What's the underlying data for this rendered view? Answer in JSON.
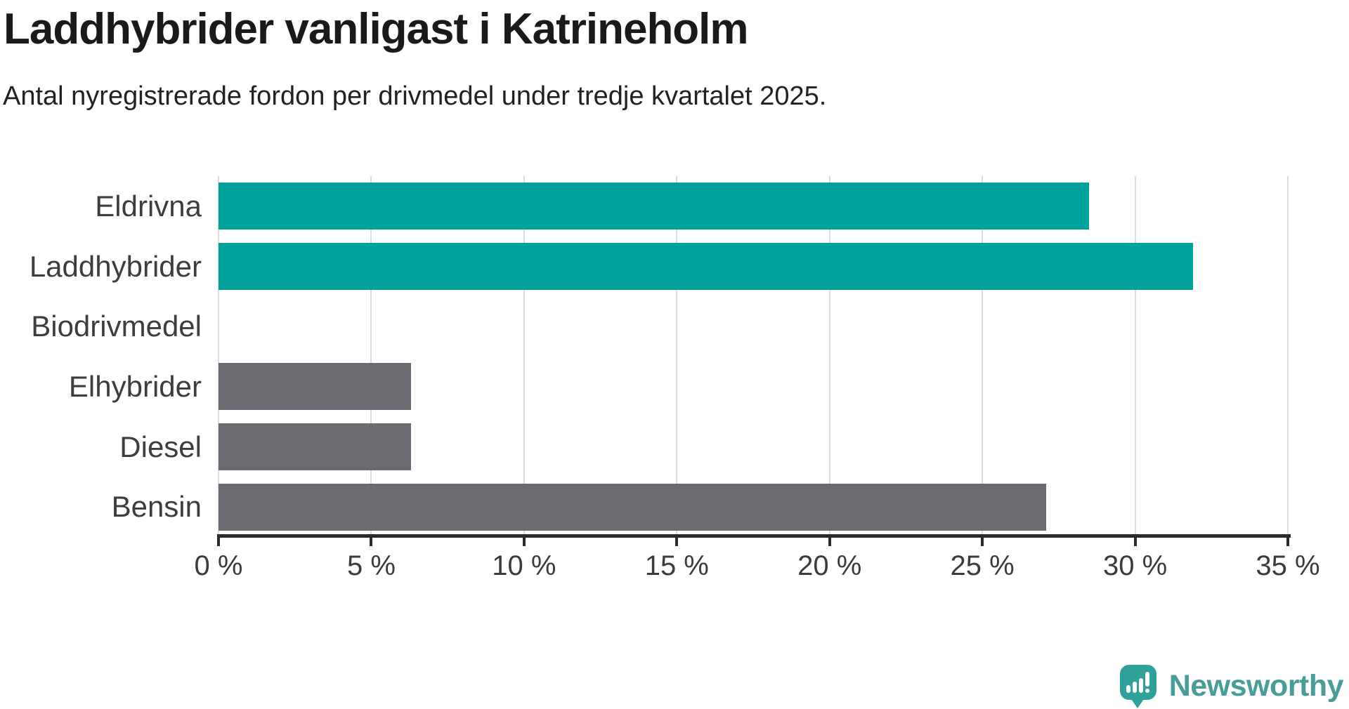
{
  "header": {
    "title": "Laddhybrider vanligast i Katrineholm",
    "subtitle": "Antal nyregistrerade fordon per drivmedel under tredje kvartalet 2025."
  },
  "chart_data": {
    "type": "bar",
    "orientation": "horizontal",
    "title": "Laddhybrider vanligast i Katrineholm",
    "subtitle": "Antal nyregistrerade fordon per drivmedel under tredje kvartalet 2025.",
    "categories": [
      "Eldrivna",
      "Laddhybrider",
      "Biodrivmedel",
      "Elhybrider",
      "Diesel",
      "Bensin"
    ],
    "values": [
      28.5,
      31.9,
      0,
      6.3,
      6.3,
      27.1
    ],
    "unit": "%",
    "xlim": [
      0,
      35
    ],
    "x_tick_values": [
      0,
      5,
      10,
      15,
      20,
      25,
      30,
      35
    ],
    "x_ticks": [
      "0 %",
      "5 %",
      "10 %",
      "15 %",
      "20 %",
      "25 %",
      "30 %",
      "35 %"
    ],
    "bar_colors": [
      "#00a29b",
      "#00a29b",
      "#6b6a70",
      "#6b6a70",
      "#6b6a70",
      "#6b6a70"
    ],
    "highlight_color": "#00a29b",
    "default_color": "#6b6a70",
    "grid": true,
    "gridline_color": "#dcdcdc",
    "axis_color": "#2b2b2b",
    "legend": "none"
  },
  "footer": {
    "brand": "Newsworthy",
    "brand_color": "#479e98",
    "logo_icon": "newsworthy-speech-bubble-chart-icon"
  }
}
